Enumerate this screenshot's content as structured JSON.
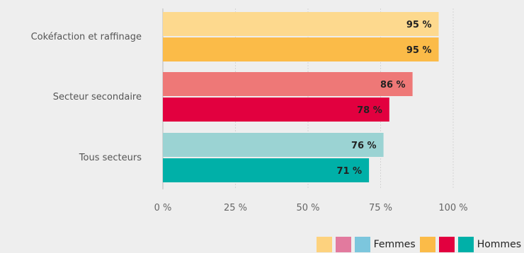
{
  "chart_data": {
    "type": "bar",
    "orientation": "horizontal",
    "categories": [
      "Cokéfaction et raffinage",
      "Secteur secondaire",
      "Tous secteurs"
    ],
    "series": [
      {
        "name": "Femmes",
        "values": [
          95,
          86,
          76
        ]
      },
      {
        "name": "Hommes",
        "values": [
          95,
          78,
          71
        ]
      }
    ],
    "value_labels": {
      "Femmes": [
        "95 %",
        "86 %",
        "76 %"
      ],
      "Hommes": [
        "95 %",
        "78 %",
        "71 %"
      ]
    },
    "colors": {
      "Femmes": [
        "#fdd98e",
        "#ee7877",
        "#9bd3d3"
      ],
      "Hommes": [
        "#fbbb48",
        "#e2003f",
        "#00b0a8"
      ]
    },
    "xlim": [
      0,
      100
    ],
    "xticks": [
      0,
      25,
      50,
      75,
      100
    ],
    "xtick_labels": [
      "0 %",
      "25 %",
      "50 %",
      "75 %",
      "100 %"
    ],
    "grid": true,
    "legend": {
      "position": "bottom-right",
      "groups": [
        {
          "label": "Femmes",
          "swatches": [
            "#fdd27e",
            "#e27a9e",
            "#7cc6dd"
          ]
        },
        {
          "label": "Hommes",
          "swatches": [
            "#fbbb48",
            "#e2003f",
            "#00b0a8"
          ]
        }
      ]
    }
  }
}
